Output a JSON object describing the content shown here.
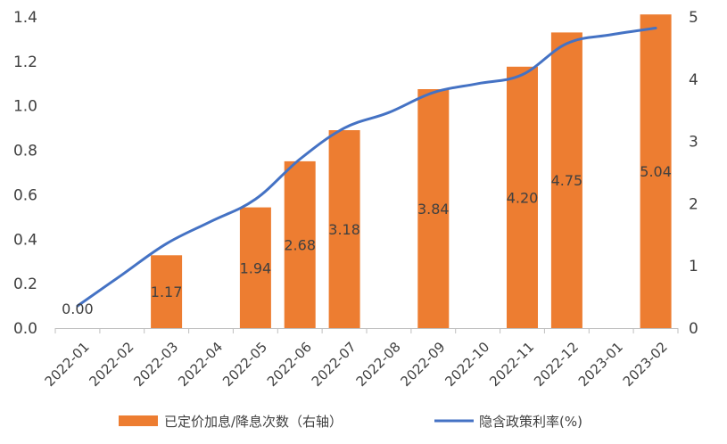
{
  "chart_data": {
    "type": "bar",
    "title": "",
    "categories": [
      "2022-01",
      "2022-02",
      "2022-03",
      "2022-04",
      "2022-05",
      "2022-06",
      "2022-07",
      "2022-08",
      "2022-09",
      "2022-10",
      "2022-11",
      "2022-12",
      "2023-01",
      "2023-02"
    ],
    "series": [
      {
        "name": "已定价加息/降息次数（右轴）",
        "type": "bar",
        "axis": "right",
        "color": "#ED7D31",
        "values": [
          0,
          null,
          1.17,
          null,
          1.94,
          2.68,
          3.18,
          null,
          3.84,
          null,
          4.2,
          4.75,
          null,
          5.04
        ],
        "data_labels": [
          "0.00",
          "",
          "1.17",
          "",
          "1.94",
          "2.68",
          "3.18",
          "",
          "3.84",
          "",
          "4.20",
          "4.75",
          "",
          "5.04"
        ]
      },
      {
        "name": "隐含政策利率(%)",
        "type": "line",
        "axis": "left",
        "color": "#4472C4",
        "values": [
          0.1,
          0.24,
          0.38,
          0.48,
          0.58,
          0.76,
          0.9,
          0.97,
          1.06,
          1.1,
          1.14,
          1.28,
          1.32,
          1.35
        ]
      }
    ],
    "y_left": {
      "ylim": [
        0,
        1.4
      ],
      "ticks": [
        0,
        0.2,
        0.4,
        0.6,
        0.8,
        1.0,
        1.2,
        1.4
      ],
      "tick_labels": [
        "0.0",
        "0.2",
        "0.4",
        "0.6",
        "0.8",
        "1.0",
        "1.2",
        "1.4"
      ]
    },
    "y_right": {
      "ylim": [
        0,
        5
      ],
      "ticks": [
        0,
        1,
        2,
        3,
        4,
        5
      ],
      "tick_labels": [
        "0",
        "1",
        "2",
        "3",
        "4",
        "5"
      ]
    },
    "legend": {
      "position": "bottom",
      "entries": [
        "已定价加息/降息次数（右轴）",
        "隐含政策利率(%)"
      ]
    },
    "grid": false
  }
}
